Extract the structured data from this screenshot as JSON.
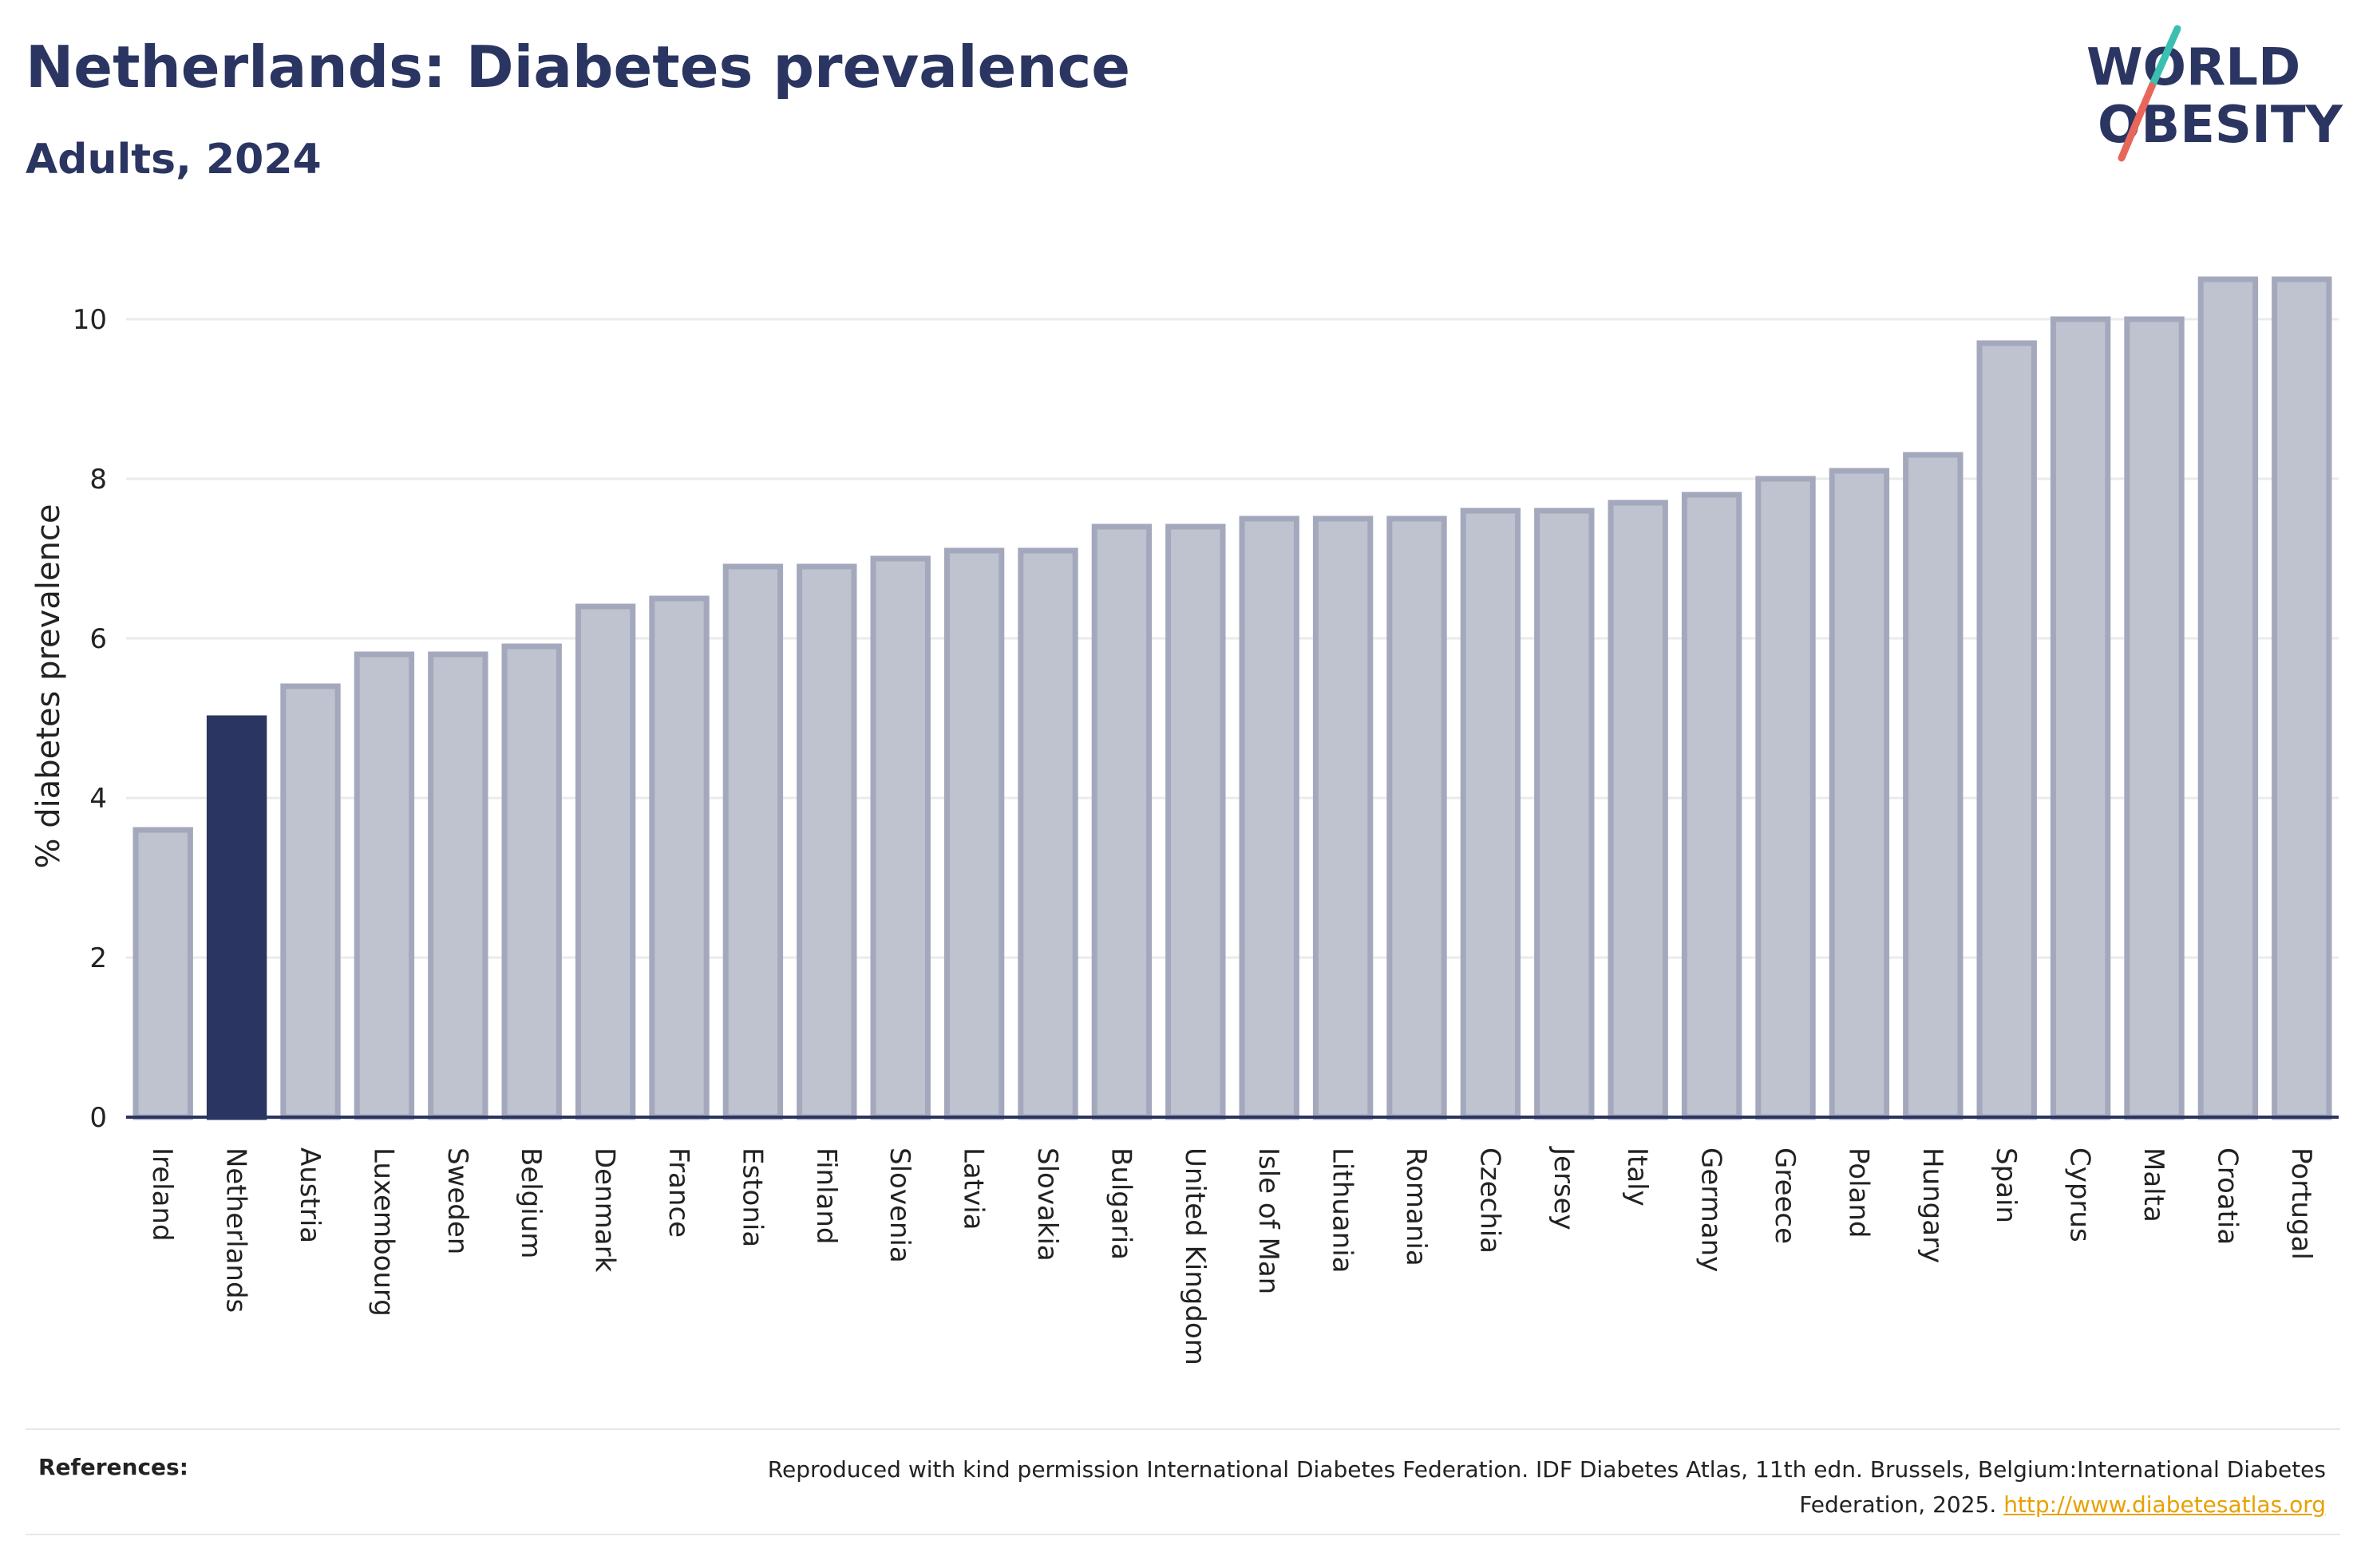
{
  "header": {
    "title": "Netherlands: Diabetes prevalence",
    "subtitle": "Adults, 2024"
  },
  "logo": {
    "line1": "WORLD",
    "line2": "OBESITY",
    "text_color": "#2b3561",
    "slash_top_color": "#3bbfb0",
    "slash_bottom_color": "#e8665a"
  },
  "chart_data": {
    "type": "bar",
    "title": "Netherlands: Diabetes prevalence",
    "subtitle": "Adults, 2024",
    "xlabel": "",
    "ylabel": "% diabetes prevalence",
    "ylim": [
      0,
      11
    ],
    "yticks": [
      0,
      2,
      4,
      6,
      8,
      10
    ],
    "grid": true,
    "highlight": "Netherlands",
    "highlight_color": "#2b3561",
    "bar_fill": "#bfc2cf",
    "bar_stroke": "#a4a8bd",
    "categories": [
      "Ireland",
      "Netherlands",
      "Austria",
      "Luxembourg",
      "Sweden",
      "Belgium",
      "Denmark",
      "France",
      "Estonia",
      "Finland",
      "Slovenia",
      "Latvia",
      "Slovakia",
      "Bulgaria",
      "United Kingdom",
      "Isle of Man",
      "Lithuania",
      "Romania",
      "Czechia",
      "Jersey",
      "Italy",
      "Germany",
      "Greece",
      "Poland",
      "Hungary",
      "Spain",
      "Cyprus",
      "Malta",
      "Croatia",
      "Portugal"
    ],
    "values": [
      3.6,
      5.0,
      5.4,
      5.8,
      5.8,
      5.9,
      6.4,
      6.5,
      6.9,
      6.9,
      7.0,
      7.1,
      7.1,
      7.4,
      7.4,
      7.5,
      7.5,
      7.5,
      7.6,
      7.6,
      7.7,
      7.8,
      8.0,
      8.1,
      8.3,
      9.7,
      10.0,
      10.0,
      10.5,
      10.5
    ]
  },
  "footer": {
    "label": "References:",
    "text": "Reproduced with kind permission International Diabetes Federation. IDF Diabetes Atlas, 11th edn. Brussels, Belgium:International Diabetes Federation, 2025.",
    "link": "http://www.diabetesatlas.org"
  }
}
